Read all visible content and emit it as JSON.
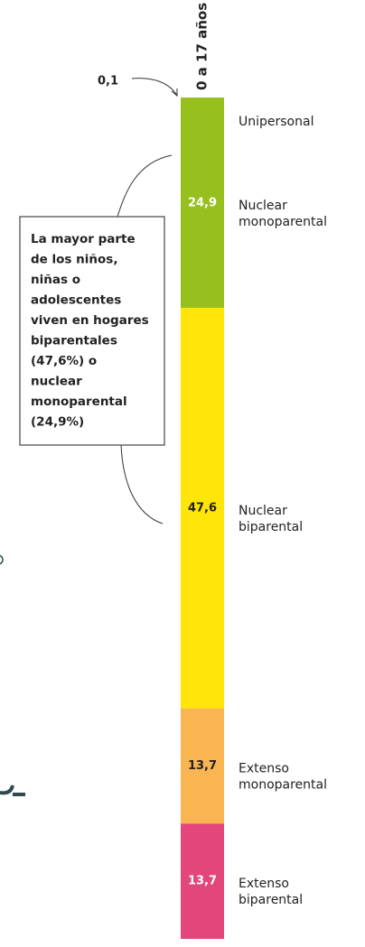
{
  "chart_data": {
    "type": "stacked-bar",
    "orientation": "vertical",
    "categories": [
      "0 a 17 años"
    ],
    "ylim": [
      0,
      100
    ],
    "series": [
      {
        "name": "Unipersonal",
        "color": "#97c01f",
        "values": [
          0.1
        ],
        "value_labels": [
          "0,1"
        ]
      },
      {
        "name": "Nuclear monoparental",
        "color": "#97c01f",
        "values": [
          24.9
        ],
        "value_labels": [
          "24,9"
        ]
      },
      {
        "name": "Nuclear biparental",
        "color": "#ffe50a",
        "values": [
          47.6
        ],
        "value_labels": [
          "47,6"
        ]
      },
      {
        "name": "Extenso monoparental",
        "color": "#f8b551",
        "values": [
          13.7
        ],
        "value_labels": [
          "13,7"
        ]
      },
      {
        "name": "Extenso biparental",
        "color": "#e2467b",
        "values": [
          13.7
        ],
        "value_labels": [
          "13,7"
        ]
      }
    ],
    "annotation": [
      "La mayor parte",
      "de los niños,",
      "niñas o",
      "adolescentes",
      "viven en hogares",
      "biparentales",
      "(47,6%) o",
      "nuclear",
      "monoparental",
      "(24,9%)"
    ]
  }
}
